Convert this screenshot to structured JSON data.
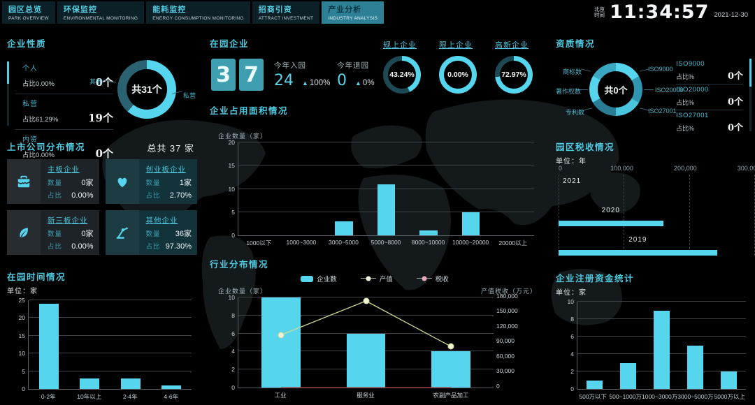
{
  "topbar": {
    "tabs": [
      {
        "title": "园区总览",
        "subtitle": "PARK OVERVIEW"
      },
      {
        "title": "环保监控",
        "subtitle": "ENVIRONMENTAL MONITORING"
      },
      {
        "title": "能耗监控",
        "subtitle": "ENERGY CONSUMPTION MONITORING"
      },
      {
        "title": "招商引资",
        "subtitle": "ATTRACT INVESTMENT"
      },
      {
        "title": "产业分析",
        "subtitle": "INDUSTRY ANALYSIS"
      }
    ],
    "clock": {
      "city": "北京",
      "label": "时间",
      "time": "11:34:57",
      "date": "2021-12-30"
    }
  },
  "panels": {
    "nature": {
      "title": "企业性质",
      "items": [
        {
          "name": "个人",
          "ratio": "占比0.00%",
          "count": "0个"
        },
        {
          "name": "私营",
          "ratio": "占比61.29%",
          "count": "19个"
        },
        {
          "name": "内资",
          "ratio": "占比0.00%",
          "count": "0个"
        }
      ],
      "donut_center": "共31个",
      "label_left": "其他",
      "label_right": "私营"
    },
    "in_park": {
      "title": "在园企业",
      "digits": [
        "3",
        "7"
      ],
      "stats": [
        {
          "label": "今年入园",
          "value": "24",
          "arrow": "▲",
          "delta": "100%"
        },
        {
          "label": "今年退园",
          "value": "0",
          "arrow": "▲",
          "delta": "0%"
        }
      ]
    },
    "gauges": [
      {
        "label": "规上企业",
        "value": "43.24%"
      },
      {
        "label": "限上企业",
        "value": "0.00%"
      },
      {
        "label": "高新企业",
        "value": "72.97%"
      }
    ],
    "qualification": {
      "title": "资质情况",
      "donut_center": "共0个",
      "donut_labels": [
        "商标数",
        "著作权数",
        "专利数",
        "ISO9000",
        "ISO20000",
        "ISO27001"
      ],
      "list": [
        {
          "name": "ISO9000",
          "ratio": "占比%",
          "count": "0个"
        },
        {
          "name": "ISO20000",
          "ratio": "占比%",
          "count": "0个"
        },
        {
          "name": "ISO27001",
          "ratio": "占比%",
          "count": "0个"
        },
        {
          "name": "专利数",
          "ratio": "",
          "count": ""
        }
      ]
    },
    "listed": {
      "title": "上市公司分布情况",
      "total": "总共 37 家",
      "cards": [
        {
          "name": "主板企业",
          "count_label": "数量",
          "count": "0家",
          "ratio_label": "占比",
          "ratio": "0.00%"
        },
        {
          "name": "创业板企业",
          "count_label": "数量",
          "count": "1家",
          "ratio_label": "占比",
          "ratio": "2.70%"
        },
        {
          "name": "新三板企业",
          "count_label": "数量",
          "count": "0家",
          "ratio_label": "占比",
          "ratio": "0.00%"
        },
        {
          "name": "其他企业",
          "count_label": "数量",
          "count": "36家",
          "ratio_label": "占比",
          "ratio": "97.30%"
        }
      ]
    },
    "area": {
      "title": "企业占用面积情况",
      "ylabel": "企业数量（家）"
    },
    "industry": {
      "title": "行业分布情况",
      "ylabel_left": "企业数量（家）",
      "ylabel_right": "产值税收（万元）",
      "legend": [
        "企业数",
        "产值",
        "税收"
      ]
    },
    "tax": {
      "title": "园区税收情况",
      "unit": "单位：年"
    },
    "time_in_park": {
      "title": "在园时间情况",
      "unit": "单位：家"
    },
    "capital": {
      "title": "企业注册资金统计",
      "unit": "单位：家"
    }
  },
  "colors": {
    "accent": "#56d5ee",
    "accent_dim": "#2a6272",
    "gauge_track": "#1d4954",
    "produce_line": "#ccdc92",
    "produce_dot": "#eef3d6",
    "tax_line": "#a83a3a",
    "tax_dot": "#eba6b6"
  },
  "chart_data": [
    {
      "id": "nature-donut",
      "type": "pie",
      "center_label": "共31个",
      "slices": [
        {
          "label": "私营",
          "value": 61.29
        },
        {
          "label": "其他",
          "value": 38.71
        }
      ]
    },
    {
      "id": "gauges",
      "type": "pie",
      "series": [
        {
          "name": "规上企业",
          "value": 43.24
        },
        {
          "name": "限上企业",
          "value": 0.0
        },
        {
          "name": "高新企业",
          "value": 72.97
        }
      ]
    },
    {
      "id": "qualification-donut",
      "type": "pie",
      "center_label": "共0个",
      "slices": [
        {
          "label": "ISO9000",
          "value": 16.7
        },
        {
          "label": "ISO20000",
          "value": 16.7
        },
        {
          "label": "ISO27001",
          "value": 16.7
        },
        {
          "label": "专利数",
          "value": 16.7
        },
        {
          "label": "著作权数",
          "value": 16.6
        },
        {
          "label": "商标数",
          "value": 16.6
        }
      ]
    },
    {
      "id": "area-bar",
      "type": "bar",
      "title": "企业占用面积情况",
      "ylabel": "企业数量（家）",
      "categories": [
        "1000以下",
        "1000~3000",
        "3000~5000",
        "5000~8000",
        "8000~10000",
        "10000~20000",
        "20000以上"
      ],
      "values": [
        0,
        0,
        3,
        11,
        1,
        5,
        0
      ],
      "ylim": [
        0,
        20
      ],
      "yticks": [
        0,
        5,
        10,
        15,
        20
      ]
    },
    {
      "id": "industry-combo",
      "type": "bar",
      "title": "行业分布情况",
      "categories": [
        "工业",
        "服务业",
        "农副产品加工"
      ],
      "series": [
        {
          "name": "企业数",
          "type": "bar",
          "axis": "left",
          "values": [
            10,
            6,
            4
          ]
        },
        {
          "name": "产值",
          "type": "line",
          "axis": "right",
          "values": [
            105000,
            173000,
            82000
          ]
        },
        {
          "name": "税收",
          "type": "line",
          "axis": "right",
          "values": [
            0,
            0,
            0
          ]
        }
      ],
      "ylim": [
        0,
        10
      ],
      "yticks": [
        0,
        2,
        4,
        6,
        8,
        10
      ],
      "ylim_right": [
        0,
        180000
      ],
      "yticks_right": [
        0,
        30000,
        60000,
        90000,
        120000,
        150000,
        180000
      ]
    },
    {
      "id": "tax-hbar",
      "type": "bar",
      "title": "园区税收情况",
      "orientation": "horizontal",
      "categories": [
        "2021",
        "2020",
        "2019"
      ],
      "values": [
        0,
        165000,
        250000
      ],
      "xlim": [
        0,
        300000
      ],
      "xticks": [
        0,
        100000,
        200000,
        300000
      ]
    },
    {
      "id": "time-bar",
      "type": "bar",
      "title": "在园时间情况",
      "categories": [
        "0-2年",
        "10年以上",
        "2-4年",
        "4-6年"
      ],
      "values": [
        24,
        3,
        3,
        1
      ],
      "ylim": [
        0,
        25
      ],
      "yticks": [
        0,
        5,
        10,
        15,
        20,
        25
      ]
    },
    {
      "id": "capital-bar",
      "type": "bar",
      "title": "企业注册资金统计",
      "categories": [
        "500万以下",
        "500~1000万",
        "1000~3000万",
        "3000~5000万",
        "5000万以上"
      ],
      "values": [
        1,
        3,
        9,
        5,
        2
      ],
      "ylim": [
        0,
        10
      ],
      "yticks": [
        0,
        2,
        4,
        6,
        8,
        10
      ]
    }
  ]
}
